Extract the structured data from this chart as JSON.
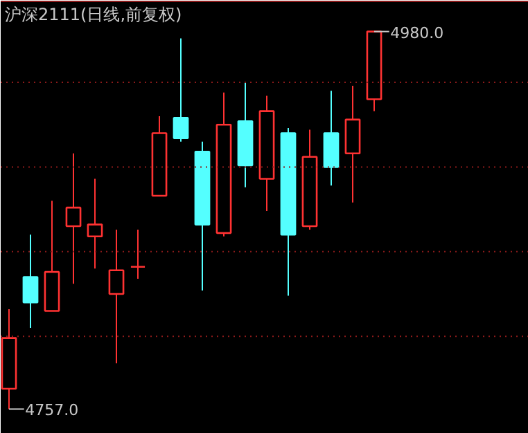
{
  "chart_data": {
    "type": "candlestick",
    "title": "沪深2111(日线,前复权)",
    "categories": [
      null,
      null,
      null,
      null,
      null,
      null,
      null,
      null,
      null,
      null,
      null,
      null,
      null,
      null,
      null,
      null,
      null,
      null
    ],
    "ohlc": [
      [
        4769,
        4816,
        4757,
        4799
      ],
      [
        4835,
        4860,
        4805,
        4820
      ],
      [
        4815,
        4880,
        4815,
        4838
      ],
      [
        4865,
        4908,
        4831,
        4876
      ],
      [
        4859,
        4893,
        4840,
        4866
      ],
      [
        4825,
        4863,
        4784,
        4839
      ],
      [
        4841,
        4863,
        4834,
        4841
      ],
      [
        4883,
        4930,
        4883,
        4920
      ],
      [
        4929,
        4976,
        4915,
        4917
      ],
      [
        4909,
        4915,
        4827,
        4866
      ],
      [
        4861,
        4944,
        4859,
        4925
      ],
      [
        4927,
        4950,
        4888,
        4901
      ],
      [
        4893,
        4942,
        4874,
        4933
      ],
      [
        4920,
        4923,
        4824,
        4860
      ],
      [
        4865,
        4922,
        4863,
        4906
      ],
      [
        4920,
        4945,
        4889,
        4900
      ],
      [
        4908,
        4948,
        4879,
        4928
      ],
      [
        4940,
        4980,
        4933,
        4980
      ]
    ],
    "colors": [
      "#ff3232",
      "#54ffff",
      "#ff3232",
      "#ff3232",
      "#ff3232",
      "#ff3232",
      "#ff3232",
      "#ff3232",
      "#54ffff",
      "#54ffff",
      "#ff3232",
      "#54ffff",
      "#ff3232",
      "#54ffff",
      "#ff3232",
      "#54ffff",
      "#ff3232",
      "#ff3232"
    ],
    "ref_lines": [
      {
        "axis": "y",
        "value": 4950,
        "color": "#8b1a1a",
        "line_style": "dotted"
      },
      {
        "axis": "y",
        "value": 4900,
        "color": "#8b1a1a",
        "line_style": "dotted"
      },
      {
        "axis": "y",
        "value": 4850,
        "color": "#8b1a1a",
        "line_style": "dotted"
      },
      {
        "axis": "y",
        "value": 4800,
        "color": "#8b1a1a",
        "line_style": "dotted"
      }
    ],
    "annotations": [
      "4980.0",
      "4757.0"
    ]
  }
}
